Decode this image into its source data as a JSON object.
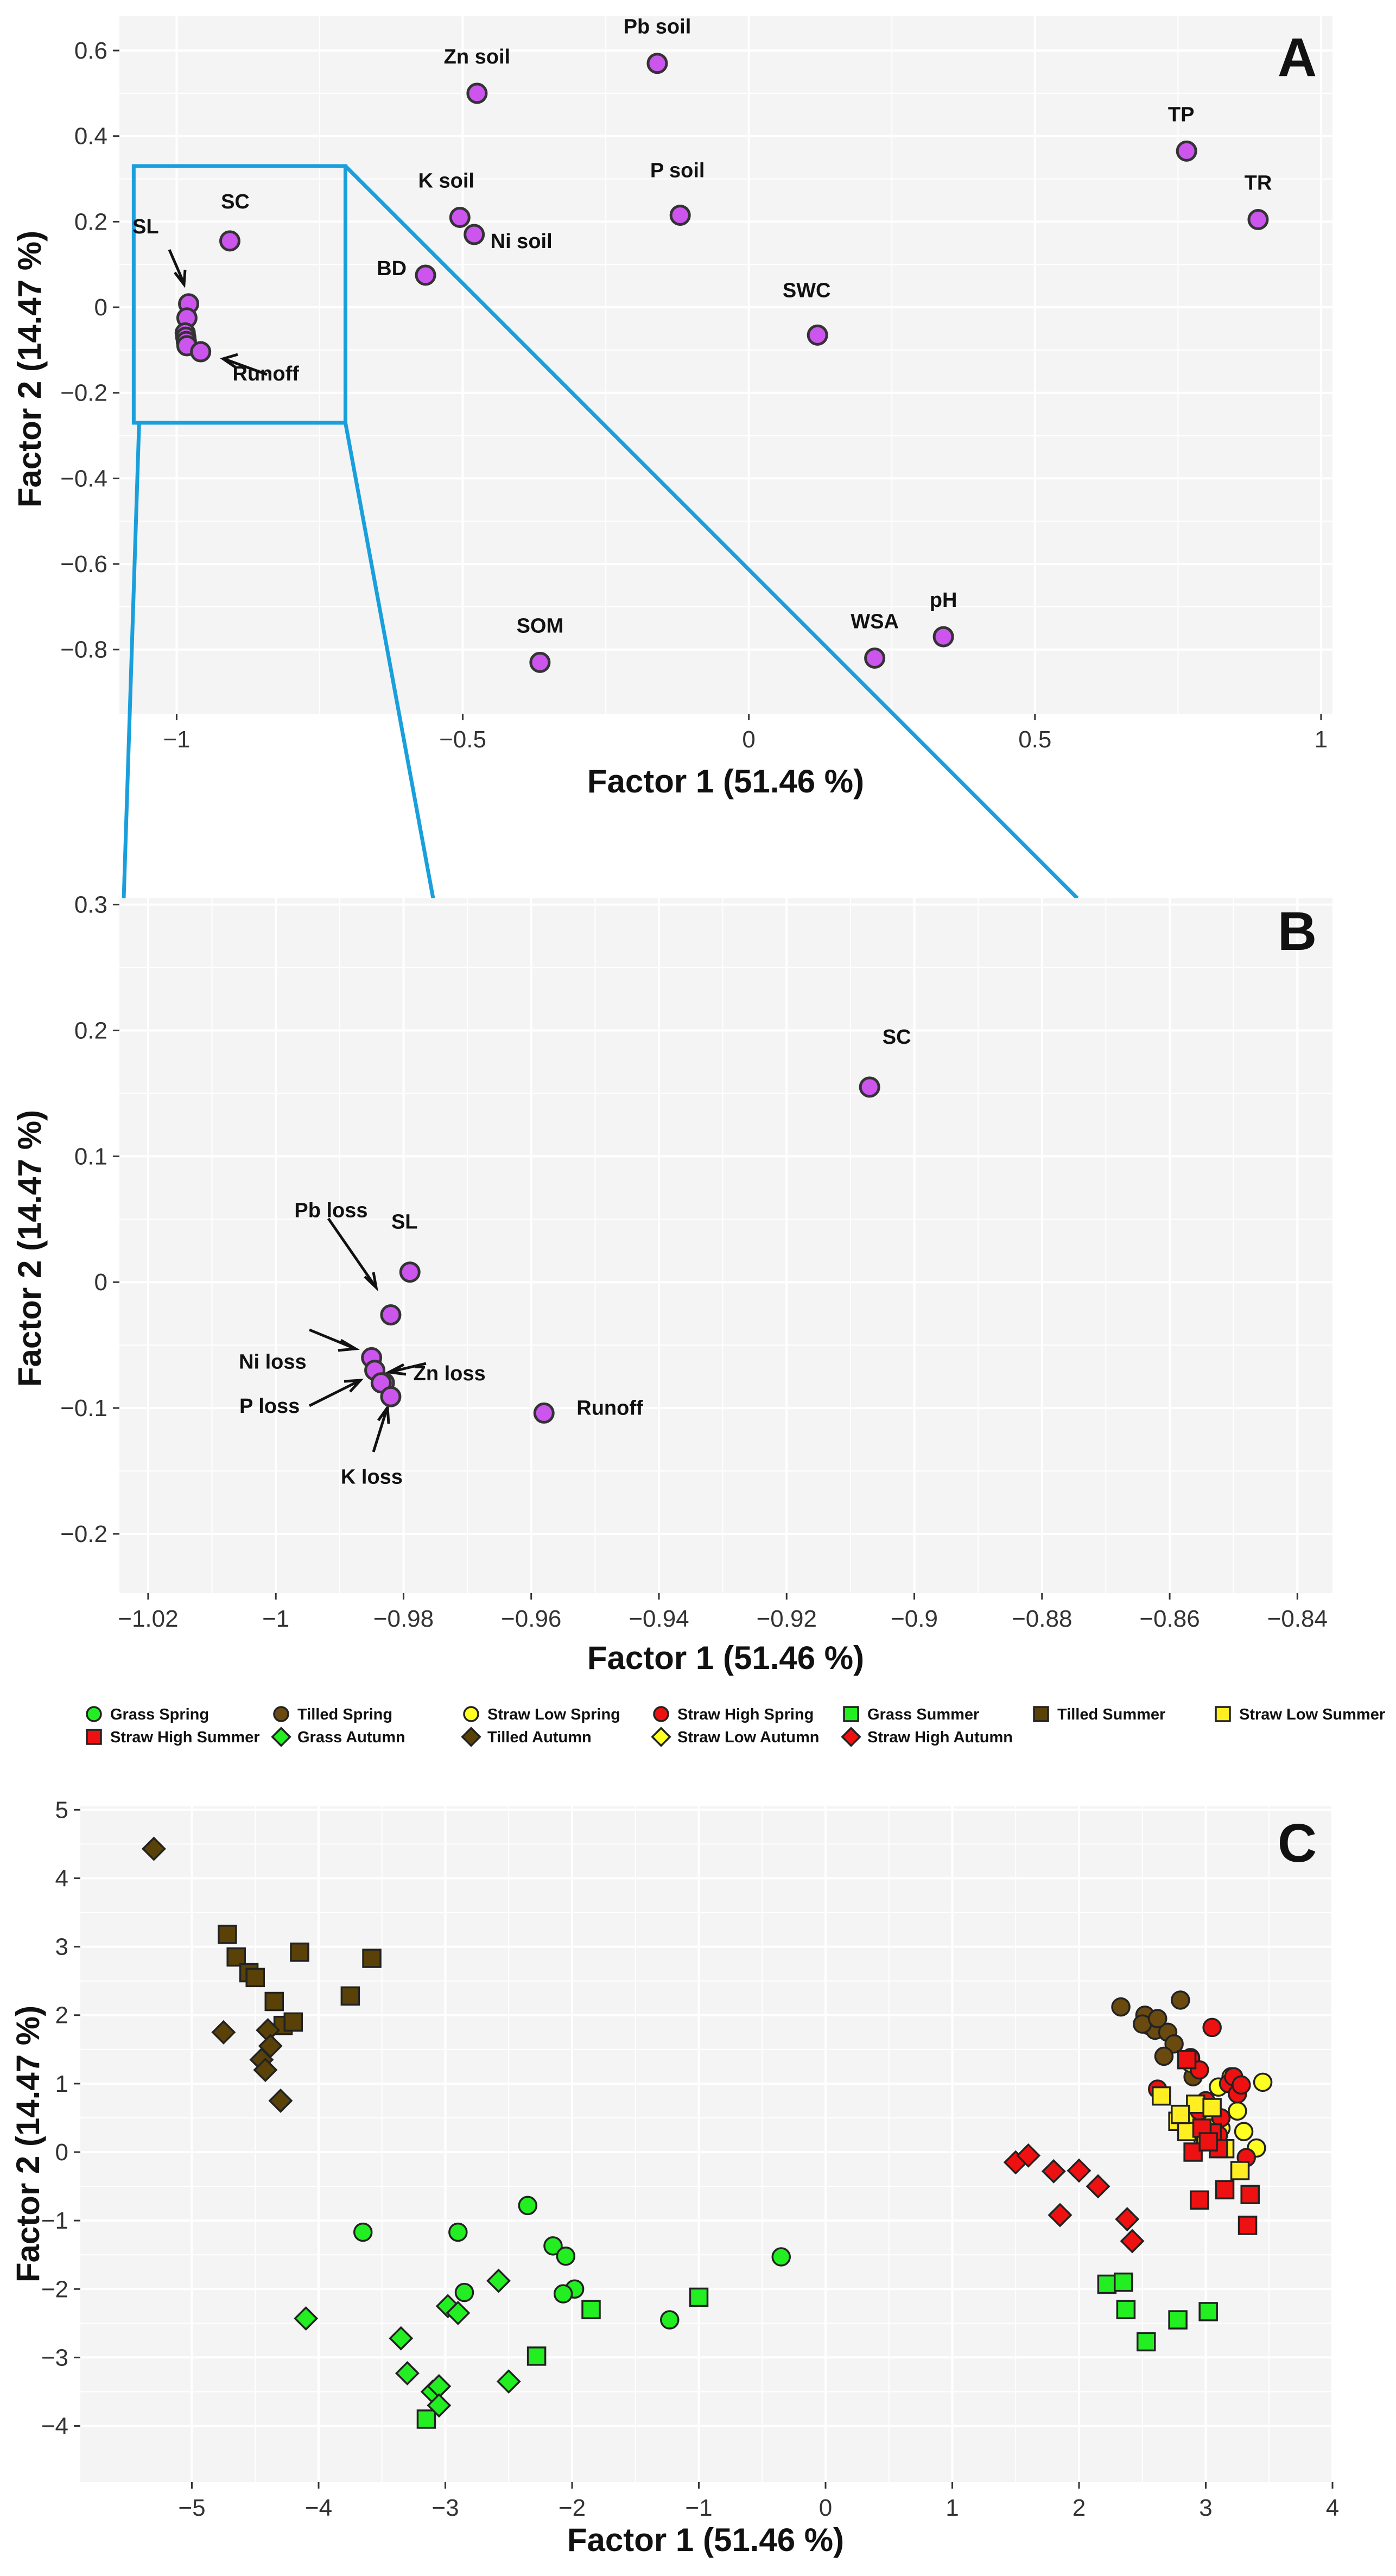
{
  "figure": {
    "panel_letters": [
      "A",
      "B",
      "C"
    ]
  },
  "chart_data": [
    {
      "panel": "A",
      "type": "scatter",
      "xlabel": "Factor 1 (51.46 %)",
      "ylabel": "Factor 2 (14.47 %)",
      "xlim": [
        -1.1,
        1.02
      ],
      "ylim": [
        -0.95,
        0.68
      ],
      "xticks": [
        -1,
        -0.5,
        0,
        0.5,
        1
      ],
      "xtick_labels": [
        "−1",
        "−0.5",
        "0",
        "0.5",
        "1"
      ],
      "yticks": [
        0.6,
        0.4,
        0.2,
        0,
        -0.2,
        -0.4,
        -0.6,
        -0.8
      ],
      "ytick_labels": [
        "0.6",
        "0.4",
        "0.2",
        "0",
        "−0.2",
        "−0.4",
        "−0.6",
        "−0.8"
      ],
      "marker_color": "#cc55ee",
      "points": [
        {
          "label": "Pb soil",
          "x": -0.16,
          "y": 0.57
        },
        {
          "label": "Zn soil",
          "x": -0.475,
          "y": 0.5
        },
        {
          "label": "TP",
          "x": 0.765,
          "y": 0.365
        },
        {
          "label": "TR",
          "x": 0.89,
          "y": 0.205
        },
        {
          "label": "K soil",
          "x": -0.505,
          "y": 0.21
        },
        {
          "label": "P soil",
          "x": -0.12,
          "y": 0.215
        },
        {
          "label": "Ni soil",
          "x": -0.48,
          "y": 0.17
        },
        {
          "label": "SC",
          "x": -0.907,
          "y": 0.155
        },
        {
          "label": "BD",
          "x": -0.565,
          "y": 0.075
        },
        {
          "label": "SWC",
          "x": 0.12,
          "y": -0.065
        },
        {
          "label": "SOM",
          "x": -0.365,
          "y": -0.83
        },
        {
          "label": "WSA",
          "x": 0.22,
          "y": -0.82
        },
        {
          "label": "pH",
          "x": 0.34,
          "y": -0.77
        },
        {
          "label": "SL",
          "x": -0.979,
          "y": 0.008
        },
        {
          "label": "",
          "x": -0.982,
          "y": -0.025
        },
        {
          "label": "",
          "x": -0.985,
          "y": -0.06
        },
        {
          "label": "",
          "x": -0.984,
          "y": -0.07
        },
        {
          "label": "",
          "x": -0.983,
          "y": -0.08
        },
        {
          "label": "",
          "x": -0.982,
          "y": -0.09
        },
        {
          "label": "Runoff",
          "x": -0.958,
          "y": -0.104
        }
      ],
      "zoom_box": {
        "x": [
          -1.075,
          -0.705
        ],
        "y": [
          -0.27,
          0.33
        ]
      }
    },
    {
      "panel": "B",
      "type": "scatter",
      "xlabel": "Factor 1 (51.46 %)",
      "ylabel": "Factor 2 (14.47 %)",
      "xlim": [
        -1.0245,
        -0.8345
      ],
      "ylim": [
        -0.247,
        0.305
      ],
      "xticks": [
        -1.02,
        -1,
        -0.98,
        -0.96,
        -0.94,
        -0.92,
        -0.9,
        -0.88,
        -0.86,
        -0.84
      ],
      "xtick_labels": [
        "−1.02",
        "−1",
        "−0.98",
        "−0.96",
        "−0.94",
        "−0.92",
        "−0.9",
        "−0.88",
        "−0.86",
        "−0.84"
      ],
      "yticks": [
        0.3,
        0.2,
        0.1,
        0,
        -0.1,
        -0.2
      ],
      "ytick_labels": [
        "0.3",
        "0.2",
        "0.1",
        "0",
        "−0.1",
        "−0.2"
      ],
      "marker_color": "#cc55ee",
      "points": [
        {
          "label": "SC",
          "x": -0.907,
          "y": 0.155
        },
        {
          "label": "SL",
          "x": -0.979,
          "y": 0.008
        },
        {
          "label": "Pb loss",
          "x": -0.982,
          "y": -0.026
        },
        {
          "label": "Ni loss",
          "x": -0.985,
          "y": -0.06
        },
        {
          "label": "",
          "x": -0.9845,
          "y": -0.07
        },
        {
          "label": "Zn loss",
          "x": -0.983,
          "y": -0.08
        },
        {
          "label": "P loss",
          "x": -0.9835,
          "y": -0.08
        },
        {
          "label": "K loss",
          "x": -0.982,
          "y": -0.091
        },
        {
          "label": "Runoff",
          "x": -0.958,
          "y": -0.104
        }
      ]
    },
    {
      "panel": "C",
      "type": "scatter",
      "xlabel": "Factor 1 (51.46 %)",
      "ylabel": "Factor 2 (14.47 %)",
      "xlim": [
        -5.88,
        4.0
      ],
      "ylim": [
        -4.82,
        5.05
      ],
      "xticks": [
        -5,
        -4,
        -3,
        -2,
        -1,
        0,
        1,
        2,
        3,
        4
      ],
      "xtick_labels": [
        "−5",
        "−4",
        "−3",
        "−2",
        "−1",
        "0",
        "1",
        "2",
        "3",
        "4"
      ],
      "yticks": [
        5,
        4,
        3,
        2,
        1,
        0,
        -1,
        -2,
        -3,
        -4
      ],
      "ytick_labels": [
        "5",
        "4",
        "3",
        "2",
        "1",
        "0",
        "−1",
        "−2",
        "−3",
        "−4"
      ],
      "legend_position": "top",
      "series": [
        {
          "name": "Grass Spring",
          "color": "#22ee22",
          "marker": "circle",
          "x": [
            -3.65,
            -2.9,
            -2.35,
            -2.15,
            -2.05,
            -1.98,
            -2.07,
            -2.85,
            -1.23,
            -0.35
          ],
          "y": [
            -1.17,
            -1.17,
            -0.78,
            -1.37,
            -1.52,
            -2.0,
            -2.07,
            -2.05,
            -2.45,
            -1.53
          ]
        },
        {
          "name": "Tilled Spring",
          "color": "#6b4a10",
          "marker": "circle",
          "x": [
            2.33,
            2.52,
            2.55,
            2.6,
            2.7,
            2.8,
            2.75,
            2.88,
            2.67,
            2.5,
            2.62,
            2.9
          ],
          "y": [
            2.12,
            2.0,
            1.85,
            1.78,
            1.75,
            2.22,
            1.58,
            1.38,
            1.4,
            1.87,
            1.95,
            1.1
          ]
        },
        {
          "name": "Straw Low Spring",
          "color": "#ffff22",
          "marker": "circle",
          "x": [
            2.88,
            2.95,
            3.02,
            3.1,
            3.2,
            3.3,
            3.45,
            2.98,
            3.12,
            3.25,
            3.4,
            2.9
          ],
          "y": [
            1.3,
            0.7,
            0.5,
            0.95,
            1.1,
            0.3,
            1.02,
            0.15,
            0.35,
            0.6,
            0.06,
            0.55
          ]
        },
        {
          "name": "Straw High Spring",
          "color": "#ee1111",
          "marker": "circle",
          "x": [
            2.62,
            2.88,
            2.95,
            3.0,
            3.05,
            3.12,
            3.18,
            3.25,
            3.22,
            3.28,
            3.1,
            2.95,
            3.32
          ],
          "y": [
            0.92,
            1.37,
            1.2,
            0.75,
            1.82,
            0.5,
            1.0,
            0.85,
            1.1,
            0.98,
            0.25,
            0.6,
            -0.08
          ]
        },
        {
          "name": "Grass Summer",
          "color": "#22ee22",
          "marker": "square",
          "x": [
            -1.85,
            -2.28,
            -1.0,
            -3.15,
            2.22,
            2.35,
            2.37,
            2.53,
            2.78,
            3.02
          ],
          "y": [
            -2.3,
            -2.98,
            -2.12,
            -3.9,
            -1.93,
            -1.9,
            -2.3,
            -2.77,
            -2.45,
            -2.33
          ]
        },
        {
          "name": "Tilled Summer",
          "color": "#5a4108",
          "marker": "square",
          "x": [
            -4.72,
            -4.65,
            -4.55,
            -4.5,
            -4.35,
            -4.28,
            -4.2,
            -4.15,
            -3.75,
            -3.58
          ],
          "y": [
            3.18,
            2.85,
            2.62,
            2.55,
            2.2,
            1.85,
            1.9,
            2.92,
            2.28,
            2.83
          ]
        },
        {
          "name": "Straw Low Summer",
          "color": "#ffee22",
          "marker": "square",
          "x": [
            2.65,
            2.78,
            2.85,
            2.92,
            3.05,
            3.15,
            3.27,
            2.8,
            3.0
          ],
          "y": [
            0.82,
            0.45,
            0.3,
            0.7,
            0.65,
            0.05,
            -0.27,
            0.55,
            0.2
          ]
        },
        {
          "name": "Straw High Summer",
          "color": "#ee1111",
          "marker": "square",
          "x": [
            2.95,
            3.05,
            3.1,
            3.15,
            3.35,
            3.33,
            2.97,
            2.9,
            3.02,
            2.85
          ],
          "y": [
            -0.7,
            0.28,
            0.05,
            -0.55,
            -0.62,
            -1.07,
            0.35,
            0.0,
            0.15,
            1.35
          ]
        },
        {
          "name": "Grass Autumn",
          "color": "#22ee22",
          "marker": "diamond",
          "x": [
            -4.1,
            -3.35,
            -3.3,
            -3.1,
            -3.05,
            -3.05,
            -2.98,
            -2.9,
            -2.58,
            -2.5
          ],
          "y": [
            -2.43,
            -2.72,
            -3.23,
            -3.5,
            -3.42,
            -3.7,
            -2.25,
            -2.35,
            -1.88,
            -3.35
          ]
        },
        {
          "name": "Tilled Autumn",
          "color": "#5a4108",
          "marker": "diamond",
          "x": [
            -5.3,
            -4.75,
            -4.45,
            -4.42,
            -4.4,
            -4.38,
            -4.3
          ],
          "y": [
            4.43,
            1.75,
            1.35,
            1.2,
            1.78,
            1.55,
            0.75
          ]
        },
        {
          "name": "Straw Low Autumn",
          "color": "#ffff22",
          "marker": "diamond",
          "x": [],
          "y": []
        },
        {
          "name": "Straw High Autumn",
          "color": "#ee1111",
          "marker": "diamond",
          "x": [
            1.5,
            1.6,
            1.8,
            1.85,
            2.0,
            2.15,
            2.38,
            2.42
          ],
          "y": [
            -0.15,
            -0.05,
            -0.28,
            -0.92,
            -0.27,
            -0.5,
            -0.98,
            -1.3
          ]
        }
      ]
    }
  ]
}
